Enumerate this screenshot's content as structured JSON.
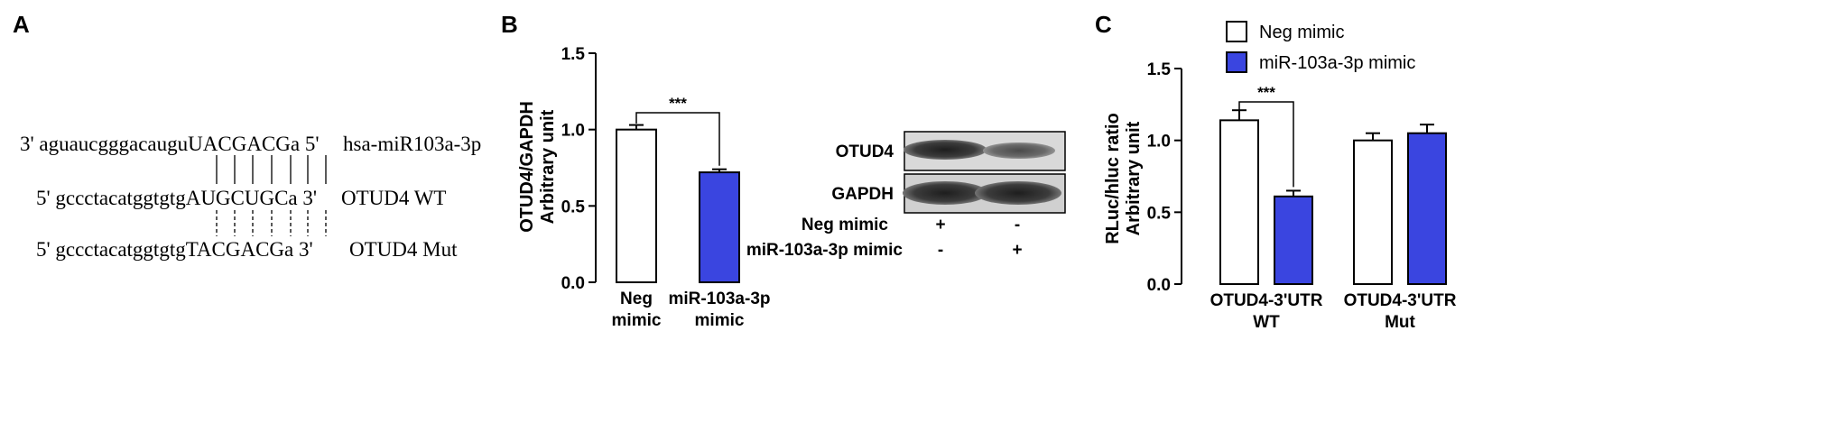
{
  "panel_labels": {
    "a": "A",
    "b": "B",
    "c": "C"
  },
  "colors": {
    "neg": "#ffffff",
    "mir": "#3a45e0"
  },
  "panel_a": {
    "mirna_seq": "3' aguaucgggacauguUACGACGa 5'",
    "mirna_label": "hsa-miR103a-3p",
    "wt_seq": "5' gccctacatggtgtgAUGCUGCa 3'",
    "wt_label": "OTUD4 WT",
    "mut_seq": "5' gccctacatggtgtgTACGACGa 3'",
    "mut_label": "OTUD4 Mut"
  },
  "blot": {
    "rows": [
      "OTUD4",
      "GAPDH"
    ],
    "conditions": [
      {
        "label": "Neg mimic",
        "lanes": [
          "+",
          "-"
        ]
      },
      {
        "label": "miR-103a-3p mimic",
        "lanes": [
          "-",
          "+"
        ]
      }
    ]
  },
  "chart_data": [
    {
      "type": "bar",
      "ylabel_line1": "OTUD4/GAPDH",
      "ylabel_line2": "Arbitrary unit",
      "ylim": [
        0,
        1.5
      ],
      "yticks": [
        "0.0",
        "0.5",
        "1.0",
        "1.5"
      ],
      "categories": [
        [
          "Neg",
          "mimic"
        ],
        [
          "miR-103a-3p",
          "mimic"
        ]
      ],
      "values": [
        1.0,
        0.72
      ],
      "errors": [
        0.03,
        0.02
      ],
      "significance": [
        {
          "between": [
            0,
            1
          ],
          "label": "***"
        }
      ]
    },
    {
      "type": "bar",
      "ylabel_line1": "RLuc/hluc ratio",
      "ylabel_line2": "Arbitrary unit",
      "ylim": [
        0,
        1.5
      ],
      "yticks": [
        "0.0",
        "0.5",
        "1.0",
        "1.5"
      ],
      "categories": [
        [
          "OTUD4-3'UTR",
          "WT"
        ],
        [
          "OTUD4-3'UTR",
          "Mut"
        ]
      ],
      "series": [
        {
          "name": "Neg mimic",
          "values": [
            1.14,
            1.0
          ],
          "errors": [
            0.07,
            0.05
          ]
        },
        {
          "name": "miR-103a-3p mimic",
          "values": [
            0.61,
            1.05
          ],
          "errors": [
            0.04,
            0.06
          ]
        }
      ],
      "significance": [
        {
          "category": 0,
          "label": "***"
        }
      ],
      "legend": "top"
    }
  ]
}
